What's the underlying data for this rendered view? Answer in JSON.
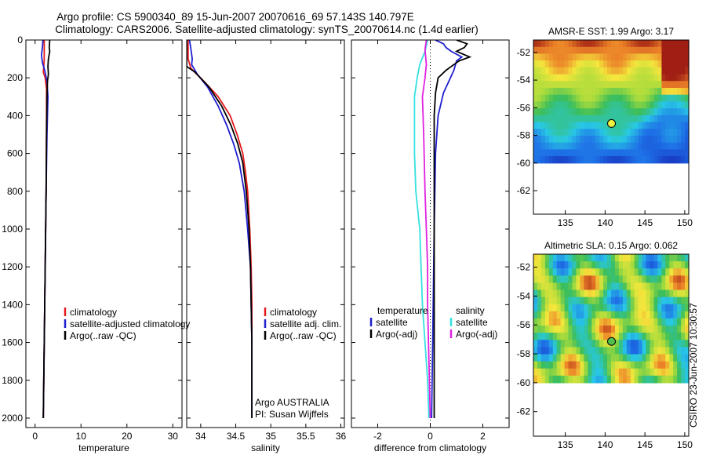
{
  "title_line1": "Argo profile: CS 5900340_89 15-Jun-2007 20070616_69 57.143S 140.797E",
  "title_line2": "Climatology: CARS2006. Satellite-adjusted climatology: synTS_20070614.nc (1.4d earlier)",
  "credit": "CSIRO 23-Jun-2007 10:30:57",
  "colors": {
    "red": "#e41a1c",
    "blue": "#1f1fd0",
    "black": "#000000",
    "cyan": "#35e0e0",
    "magenta": "#e020e0"
  },
  "chart_data": [
    {
      "id": "temperature",
      "type": "line",
      "xlabel": "temperature",
      "ylabel": "",
      "xlim": [
        -2,
        32
      ],
      "ylim": [
        0,
        2050
      ],
      "y_inverted": true,
      "xticks": [
        0,
        10,
        20,
        30
      ],
      "yticks": [
        0,
        200,
        400,
        600,
        800,
        1000,
        1200,
        1400,
        1600,
        1800,
        2000
      ],
      "legend": [
        "climatology",
        "satellite-adjusted climatology",
        "Argo(..raw -QC)"
      ],
      "series": [
        {
          "name": "climatology",
          "color": "#e41a1c",
          "points": [
            [
              2.0,
              0
            ],
            [
              2.0,
              50
            ],
            [
              2.0,
              100
            ],
            [
              1.9,
              140
            ],
            [
              1.8,
              170
            ],
            [
              2.2,
              200
            ],
            [
              2.5,
              260
            ],
            [
              2.5,
              400
            ],
            [
              2.4,
              800
            ],
            [
              2.2,
              1200
            ],
            [
              2.0,
              1600
            ],
            [
              1.8,
              2000
            ]
          ]
        },
        {
          "name": "satellite-adjusted climatology",
          "color": "#1f1fd0",
          "points": [
            [
              1.7,
              0
            ],
            [
              1.6,
              40
            ],
            [
              1.4,
              80
            ],
            [
              1.6,
              120
            ],
            [
              2.1,
              160
            ],
            [
              2.6,
              220
            ],
            [
              2.8,
              300
            ],
            [
              2.6,
              500
            ],
            [
              2.4,
              800
            ],
            [
              2.2,
              1200
            ],
            [
              2.0,
              1600
            ],
            [
              1.8,
              2000
            ]
          ]
        },
        {
          "name": "Argo(..raw -QC)",
          "color": "#000000",
          "points": [
            [
              3.2,
              0
            ],
            [
              3.1,
              40
            ],
            [
              3.2,
              60
            ],
            [
              2.9,
              100
            ],
            [
              2.8,
              140
            ],
            [
              2.9,
              180
            ],
            [
              2.7,
              220
            ],
            [
              2.6,
              300
            ],
            [
              2.5,
              500
            ],
            [
              2.4,
              800
            ],
            [
              2.2,
              1200
            ],
            [
              2.0,
              1600
            ],
            [
              1.8,
              2000
            ]
          ]
        }
      ]
    },
    {
      "id": "salinity",
      "type": "line",
      "xlabel": "salinity",
      "ylabel": "",
      "xlim": [
        33.8,
        36.05
      ],
      "ylim": [
        0,
        2050
      ],
      "y_inverted": true,
      "xticks": [
        34,
        34.5,
        35,
        35.5,
        36
      ],
      "yticks": [
        0,
        200,
        400,
        600,
        800,
        1000,
        1200,
        1400,
        1600,
        1800,
        2000
      ],
      "legend": [
        "climatology",
        "satellite adj. clim.",
        "Argo(..raw -QC)"
      ],
      "annotation": [
        "Argo AUSTRALIA",
        "PI: Susan Wijffels"
      ],
      "series": [
        {
          "name": "climatology",
          "color": "#e41a1c",
          "points": [
            [
              33.82,
              0
            ],
            [
              33.82,
              100
            ],
            [
              33.86,
              150
            ],
            [
              34.05,
              220
            ],
            [
              34.25,
              300
            ],
            [
              34.42,
              400
            ],
            [
              34.52,
              500
            ],
            [
              34.6,
              600
            ],
            [
              34.64,
              700
            ],
            [
              34.67,
              800
            ],
            [
              34.7,
              1000
            ],
            [
              34.72,
              1200
            ],
            [
              34.73,
              1400
            ],
            [
              34.73,
              1600
            ],
            [
              34.73,
              2000
            ]
          ]
        },
        {
          "name": "satellite adj. clim.",
          "color": "#1f1fd0",
          "points": [
            [
              33.84,
              0
            ],
            [
              33.86,
              50
            ],
            [
              33.88,
              100
            ],
            [
              33.87,
              130
            ],
            [
              33.95,
              180
            ],
            [
              34.1,
              250
            ],
            [
              34.25,
              350
            ],
            [
              34.37,
              450
            ],
            [
              34.47,
              550
            ],
            [
              34.55,
              650
            ],
            [
              34.62,
              800
            ],
            [
              34.67,
              1000
            ],
            [
              34.71,
              1200
            ],
            [
              34.72,
              1400
            ],
            [
              34.73,
              1600
            ],
            [
              34.73,
              2000
            ]
          ]
        },
        {
          "name": "Argo(..raw -QC)",
          "color": "#000000",
          "points": [
            [
              33.8,
              0
            ],
            [
              33.8,
              140
            ],
            [
              33.92,
              170
            ],
            [
              34.12,
              250
            ],
            [
              34.3,
              350
            ],
            [
              34.43,
              450
            ],
            [
              34.53,
              550
            ],
            [
              34.6,
              650
            ],
            [
              34.65,
              800
            ],
            [
              34.69,
              1000
            ],
            [
              34.71,
              1200
            ],
            [
              34.72,
              1400
            ],
            [
              34.73,
              1600
            ],
            [
              34.73,
              2000
            ]
          ]
        }
      ]
    },
    {
      "id": "difference",
      "type": "line",
      "xlabel": "difference from climatology",
      "ylabel": "",
      "xlim": [
        -3,
        3
      ],
      "ylim": [
        0,
        2050
      ],
      "y_inverted": true,
      "xticks": [
        -2,
        0,
        2
      ],
      "yticks": [
        0,
        200,
        400,
        600,
        800,
        1000,
        1200,
        1400,
        1600,
        1800,
        2000
      ],
      "legend_left_title": "temperature",
      "legend_left": [
        "satellite",
        "Argo(-adj)"
      ],
      "legend_right_title": "salinity",
      "legend_right": [
        "satellite",
        "Argo(-adj)"
      ],
      "series": [
        {
          "name": "satellite",
          "group": "temperature",
          "color": "#1f1fd0",
          "points": [
            [
              0.2,
              0
            ],
            [
              0.5,
              20
            ],
            [
              0.6,
              40
            ],
            [
              0.8,
              60
            ],
            [
              1.2,
              90
            ],
            [
              1.0,
              110
            ],
            [
              0.9,
              160
            ],
            [
              0.7,
              220
            ],
            [
              0.5,
              280
            ],
            [
              0.3,
              400
            ],
            [
              0.2,
              600
            ],
            [
              0.15,
              1000
            ],
            [
              0.1,
              1500
            ],
            [
              0.05,
              2000
            ]
          ]
        },
        {
          "name": "Argo(-adj)",
          "group": "temperature",
          "color": "#000000",
          "points": [
            [
              1.0,
              0
            ],
            [
              1.4,
              20
            ],
            [
              1.3,
              40
            ],
            [
              1.0,
              60
            ],
            [
              1.5,
              90
            ],
            [
              1.1,
              110
            ],
            [
              0.8,
              140
            ],
            [
              0.6,
              160
            ],
            [
              0.3,
              200
            ],
            [
              0.2,
              280
            ],
            [
              0.15,
              400
            ],
            [
              0.15,
              800
            ],
            [
              0.15,
              1200
            ],
            [
              0.15,
              1600
            ],
            [
              0.15,
              2000
            ]
          ]
        },
        {
          "name": "satellite",
          "group": "salinity",
          "color": "#35e0e0",
          "points": [
            [
              -0.1,
              0
            ],
            [
              -0.2,
              60
            ],
            [
              -0.4,
              130
            ],
            [
              -0.5,
              200
            ],
            [
              -0.6,
              300
            ],
            [
              -0.6,
              400
            ],
            [
              -0.6,
              600
            ],
            [
              -0.55,
              800
            ],
            [
              -0.4,
              1000
            ],
            [
              -0.35,
              1200
            ],
            [
              -0.3,
              1400
            ],
            [
              -0.2,
              1600
            ],
            [
              -0.1,
              1800
            ],
            [
              -0.05,
              2000
            ]
          ]
        },
        {
          "name": "Argo(-adj)",
          "group": "salinity",
          "color": "#e020e0",
          "points": [
            [
              -0.15,
              0
            ],
            [
              -0.2,
              50
            ],
            [
              -0.15,
              130
            ],
            [
              -0.2,
              200
            ],
            [
              -0.3,
              300
            ],
            [
              -0.25,
              500
            ],
            [
              -0.2,
              800
            ],
            [
              -0.15,
              1000
            ],
            [
              -0.1,
              1200
            ],
            [
              -0.1,
              1400
            ],
            [
              -0.05,
              1700
            ],
            [
              0,
              2000
            ]
          ]
        }
      ]
    },
    {
      "id": "sst-map",
      "type": "heatmap",
      "title": "AMSR-E SST: 1.99 Argo: 3.17",
      "xlim": [
        131,
        150.5
      ],
      "ylim": [
        -63.7,
        -51.1
      ],
      "xticks": [
        135,
        140,
        145,
        150
      ],
      "yticks": [
        -52,
        -54,
        -56,
        -58,
        -60,
        -62
      ],
      "data_extent_lat": [
        -60,
        -51.1
      ],
      "marker": {
        "lon": 140.8,
        "lat": -57.14,
        "color": "#f0f040"
      },
      "field": "sst"
    },
    {
      "id": "sla-map",
      "type": "heatmap",
      "title": "Altimetric SLA: 0.15 Argo: 0.062",
      "xlim": [
        131,
        150.5
      ],
      "ylim": [
        -63.7,
        -51.1
      ],
      "xticks": [
        135,
        140,
        145,
        150
      ],
      "yticks": [
        -52,
        -54,
        -56,
        -58,
        -60,
        -62
      ],
      "data_extent_lat": [
        -60,
        -51.1
      ],
      "marker": {
        "lon": 140.8,
        "lat": -57.14,
        "color": "#50c050"
      },
      "field": "sla"
    }
  ]
}
